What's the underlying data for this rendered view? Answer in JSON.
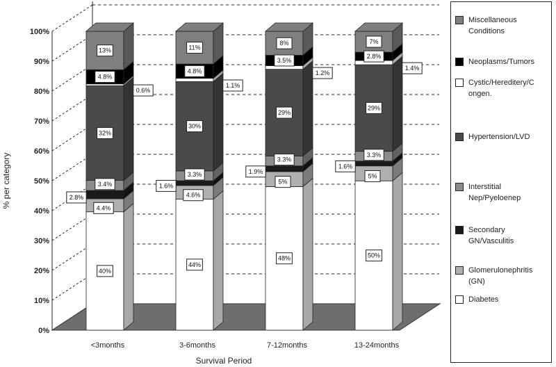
{
  "chart_data": {
    "type": "bar",
    "stacked": true,
    "three_d": true,
    "xlabel": "Survival Period",
    "ylabel": "% per category",
    "ylim": [
      0,
      100
    ],
    "yticks": [
      "0%",
      "10%",
      "20%",
      "30%",
      "40%",
      "50%",
      "60%",
      "70%",
      "80%",
      "90%",
      "100%"
    ],
    "grid": "dashed horizontal",
    "legend_position": "right",
    "categories": [
      "<3months",
      "3-6months",
      "7-12months",
      "13-24months"
    ],
    "series": [
      {
        "name": "Diabetes",
        "color": "#ffffff",
        "values": [
          40,
          44,
          48,
          50
        ],
        "labels": [
          "40%",
          "44%",
          "48%",
          "50%"
        ]
      },
      {
        "name": "Glomerulonephritis (GN)",
        "color": "#b0b0b0",
        "values": [
          4.4,
          4.6,
          5,
          5
        ],
        "labels": [
          "4.4%",
          "4.6%",
          "5%",
          "5%"
        ]
      },
      {
        "name": "Secondary GN/Vasculitis",
        "color": "#1a1a1a",
        "values": [
          2.8,
          1.6,
          1.9,
          1.6
        ],
        "labels": [
          "2.8%",
          "1.6%",
          "1.9%",
          "1.6%"
        ]
      },
      {
        "name": "Interstitial Nep/Pyeloenep",
        "color": "#8c8c8c",
        "values": [
          3.4,
          3.3,
          3.3,
          3.3
        ],
        "labels": [
          "3.4%",
          "3.3%",
          "3.3%",
          "3.3%"
        ]
      },
      {
        "name": "Hypertension/LVD",
        "color": "#4a4a4a",
        "values": [
          32,
          30,
          29,
          29
        ],
        "labels": [
          "32%",
          "30%",
          "29%",
          "29%"
        ]
      },
      {
        "name": "Cystic/Hereditery/Congen.",
        "color": "#ffffff",
        "values": [
          0.6,
          1.1,
          1.2,
          1.4
        ],
        "labels": [
          "0.6%",
          "1.1%",
          "1.2%",
          "1.4%"
        ]
      },
      {
        "name": "Neoplasms/Tumors",
        "color": "#000000",
        "values": [
          4.8,
          4.8,
          3.5,
          2.8
        ],
        "labels": [
          "4.8%",
          "4.8%",
          "3.5%",
          "2.8%"
        ]
      },
      {
        "name": "Miscellaneous Conditions",
        "color": "#7f7f7f",
        "values": [
          13,
          11,
          8,
          7
        ],
        "labels": [
          "13%",
          "11%",
          "8%",
          "7%"
        ]
      }
    ],
    "legend_order": [
      7,
      6,
      5,
      4,
      3,
      2,
      1,
      0
    ],
    "legend_labels": [
      "Miscellaneous Conditions",
      "Neoplasms/Tumors",
      "Cystic/Hereditery/C ongen.",
      "Hypertension/LVD",
      "Interstitial Nep/Pyeloenep",
      "Secondary GN/Vasculitis",
      "Glomerulonephritis (GN)",
      "Diabetes"
    ]
  }
}
